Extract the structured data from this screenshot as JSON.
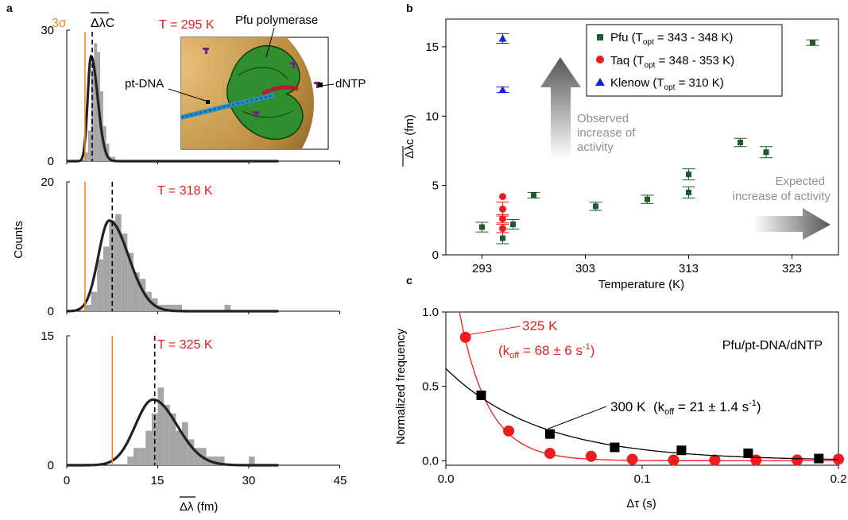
{
  "colors": {
    "orange": "#f08a1e",
    "red_text": "#e0201b",
    "pfu": "#1d5a2c",
    "taq": "#ee1c1c",
    "klenow": "#1520d8",
    "hist_bar": "#a6a6a6",
    "gray_text": "#909090"
  },
  "panel_a": {
    "label": "a",
    "ylabel": "Counts",
    "xlabel_main": "ΔλC",
    "xlabel": "Δλ (fm)",
    "x_ticks": [
      "0",
      "15",
      "30",
      "45"
    ],
    "xlim": [
      0,
      45
    ],
    "marker_sigma": "3σ",
    "marker_mean": "ΔλC",
    "inset_labels": {
      "protein": "Pfu polymerase",
      "dna": "pt-DNA",
      "ntp": "dNTP"
    },
    "subplots": [
      {
        "temp_label": "T = 295 K",
        "ymax": 30,
        "y_ticks": [
          "0",
          "30"
        ],
        "threshold_x": 3.0,
        "mean_x": 4.2,
        "fit": {
          "mu": 4.0,
          "sigma_left": 0.55,
          "sigma_right": 1.1,
          "amp": 24
        },
        "bins": {
          "x0": 0,
          "width": 0.5,
          "values": [
            0,
            0,
            0,
            0,
            0,
            0,
            2,
            7,
            21,
            27,
            25,
            16,
            8,
            4,
            1,
            1,
            0,
            0,
            0,
            0
          ]
        }
      },
      {
        "temp_label": "T = 318 K",
        "ymax": 20,
        "y_ticks": [
          "0",
          "20"
        ],
        "threshold_x": 3.0,
        "mean_x": 7.5,
        "fit": {
          "mu": 7.0,
          "sigma_left": 1.8,
          "sigma_right": 3.2,
          "amp": 14
        },
        "bins": {
          "x0": 2,
          "width": 1,
          "values": [
            0,
            1,
            3,
            8,
            10,
            14,
            15,
            12,
            9,
            6,
            5,
            3,
            2,
            1,
            1,
            1,
            1,
            0,
            0,
            0,
            0,
            0,
            0,
            0,
            1,
            0,
            0,
            0,
            0,
            0,
            0,
            0,
            0
          ]
        }
      },
      {
        "temp_label": "T = 325 K",
        "ymax": 15,
        "y_ticks": [
          "0",
          "15"
        ],
        "threshold_x": 7.5,
        "mean_x": 14.5,
        "fit": {
          "mu": 14.2,
          "sigma_left": 2.9,
          "sigma_right": 4.0,
          "amp": 7.6
        },
        "bins": {
          "x0": 9,
          "width": 1,
          "values": [
            0,
            1,
            2,
            2,
            4,
            6,
            9,
            7,
            6,
            4,
            5,
            3,
            2,
            2,
            1,
            1,
            1,
            0,
            0,
            0,
            0,
            1,
            0,
            0,
            0,
            0
          ]
        }
      }
    ]
  },
  "panel_b": {
    "label": "b",
    "ylabel": "Δλc (fm)",
    "xlabel": "Temperature (K)",
    "x_ticks": [
      "293",
      "303",
      "313",
      "323"
    ],
    "y_ticks": [
      "0",
      "5",
      "10",
      "15"
    ],
    "annotation_observed": [
      "Observed",
      "increase of",
      "activity"
    ],
    "annotation_expected": [
      "Expected",
      "increase of activity"
    ],
    "legend": [
      {
        "text": "Pfu (Topt = 343 - 348 K)",
        "name": "Pfu",
        "sub": "opt",
        "range": " = 343 - 348 K)"
      },
      {
        "text": "Taq (Topt = 348 - 353 K)",
        "name": "Taq",
        "sub": "opt",
        "range": " = 348 - 353 K)"
      },
      {
        "text": "Klenow (Topt = 310 K)",
        "name": "Klenow",
        "sub": "opt",
        "range": " = 310 K)"
      }
    ]
  },
  "panel_c": {
    "label": "c",
    "ylabel": "Normalized frequency",
    "xlabel": "Δτ (s)",
    "x_ticks": [
      "0.0",
      "0.1",
      "0.2"
    ],
    "y_ticks": [
      "0.0",
      "0.5",
      "1.0"
    ],
    "title": "Pfu/pt-DNA/dNTP",
    "label_325": "325 K",
    "koff_325": "(koff = 68 ± 6 s-1)",
    "koff_325_parts": {
      "pre": "(k",
      "sub": "off",
      "mid": " = 68 ± 6 s",
      "sup": "-1",
      "post": ")"
    },
    "label_300": "300 K",
    "koff_300": "(koff = 21 ± 1.4 s-1)",
    "koff_300_parts": {
      "pre": "(k",
      "sub": "off",
      "mid": " = 21 ± 1.4 s",
      "sup": "-1",
      "post": ")"
    }
  },
  "chart_data": [
    {
      "type": "bar",
      "panel": "a",
      "title": "T = 295 K",
      "xlabel": "Δλ (fm)",
      "ylabel": "Counts",
      "xlim": [
        0,
        45
      ],
      "ylim": [
        0,
        30
      ],
      "bin_width": 0.5,
      "bin_start": 0,
      "counts": [
        0,
        0,
        0,
        0,
        0,
        0,
        2,
        7,
        21,
        27,
        25,
        16,
        8,
        4,
        1,
        1,
        0,
        0,
        0,
        0
      ],
      "threshold_3sigma": 3.0,
      "mean_delta_lambda_c": 4.2
    },
    {
      "type": "bar",
      "panel": "a",
      "title": "T = 318 K",
      "xlabel": "Δλ (fm)",
      "ylabel": "Counts",
      "xlim": [
        0,
        45
      ],
      "ylim": [
        0,
        20
      ],
      "bin_width": 1,
      "bin_start": 2,
      "counts": [
        0,
        1,
        3,
        8,
        10,
        14,
        15,
        12,
        9,
        6,
        5,
        3,
        2,
        1,
        1,
        1,
        1,
        0,
        0,
        0,
        0,
        0,
        0,
        0,
        1,
        0,
        0,
        0,
        0,
        0,
        0,
        0,
        0
      ],
      "threshold_3sigma": 3.0,
      "mean_delta_lambda_c": 7.5
    },
    {
      "type": "bar",
      "panel": "a",
      "title": "T = 325 K",
      "xlabel": "Δλ (fm)",
      "ylabel": "Counts",
      "xlim": [
        0,
        45
      ],
      "ylim": [
        0,
        15
      ],
      "bin_width": 1,
      "bin_start": 9,
      "counts": [
        0,
        1,
        2,
        2,
        4,
        6,
        9,
        7,
        6,
        4,
        5,
        3,
        2,
        2,
        1,
        1,
        1,
        0,
        0,
        0,
        0,
        1,
        0,
        0,
        0,
        0
      ],
      "threshold_3sigma": 7.5,
      "mean_delta_lambda_c": 14.5
    },
    {
      "type": "scatter",
      "panel": "b",
      "xlabel": "Temperature (K)",
      "ylabel": "Δλc (fm)",
      "xlim": [
        289.5,
        327.5
      ],
      "ylim": [
        0,
        17
      ],
      "series": [
        {
          "name": "Pfu (Topt = 343 - 348 K)",
          "marker": "square",
          "color": "#1d5a2c",
          "x": [
            293,
            295,
            296,
            298,
            304,
            309,
            313,
            313,
            318,
            320.5,
            325
          ],
          "y": [
            2.0,
            1.2,
            2.2,
            4.3,
            3.5,
            4.0,
            5.8,
            4.5,
            8.1,
            7.4,
            15.3
          ],
          "err": [
            0.35,
            0.4,
            0.35,
            0.2,
            0.3,
            0.3,
            0.4,
            0.4,
            0.3,
            0.4,
            0.2
          ]
        },
        {
          "name": "Taq (Topt = 348 - 353 K)",
          "marker": "circle",
          "color": "#ee1c1c",
          "x": [
            295,
            295,
            295,
            295
          ],
          "y": [
            4.2,
            3.3,
            2.6,
            1.9
          ],
          "err": [
            0.0,
            0.5,
            0.3,
            0.3
          ]
        },
        {
          "name": "Klenow (Topt = 310 K)",
          "marker": "triangle",
          "color": "#1520d8",
          "x": [
            295,
            295
          ],
          "y": [
            15.6,
            11.9
          ],
          "err": [
            0.35,
            0.2
          ]
        }
      ],
      "legend": "top-right",
      "annotations": [
        "Observed increase of activity",
        "Expected increase of activity"
      ]
    },
    {
      "type": "scatter",
      "panel": "c",
      "title": "Pfu/pt-DNA/dNTP",
      "xlabel": "Δτ (s)",
      "ylabel": "Normalized frequency",
      "xlim": [
        0,
        0.2
      ],
      "ylim": [
        -0.03,
        1.0
      ],
      "series": [
        {
          "name": "325 K",
          "marker": "circle",
          "color": "#ee1c1c",
          "x": [
            0.01,
            0.032,
            0.053,
            0.074,
            0.095,
            0.116,
            0.137,
            0.158,
            0.179,
            0.2
          ],
          "y": [
            0.83,
            0.2,
            0.05,
            0.03,
            0.01,
            0.005,
            0.005,
            0.005,
            0.005,
            0.01
          ],
          "fit": {
            "A": 1.6,
            "k": 68
          }
        },
        {
          "name": "300 K",
          "marker": "square",
          "color": "#000000",
          "x": [
            0.018,
            0.053,
            0.086,
            0.12,
            0.154,
            0.19
          ],
          "y": [
            0.44,
            0.18,
            0.09,
            0.07,
            0.05,
            0.015
          ],
          "fit": {
            "A": 0.62,
            "k": 21
          }
        }
      ],
      "annotations": [
        "325 K (koff = 68 ± 6 s-1)",
        "300 K (koff = 21 ± 1.4 s-1)"
      ]
    }
  ]
}
